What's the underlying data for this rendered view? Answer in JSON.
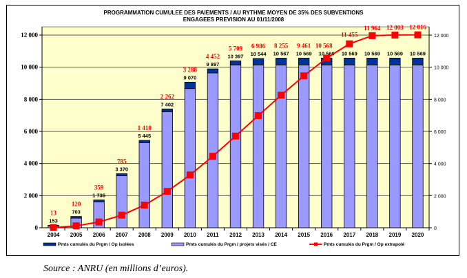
{
  "chart_data": {
    "type": "bar",
    "stacked": true,
    "title": "PROGRAMMATION CUMULEE DES PAIEMENTS / AU RYTHME MOYEN DE 35% DES SUBVENTIONS",
    "subtitle": "ENGAGEES PREVISION AU 01/11/2008",
    "xlabel": "",
    "ylabel": "",
    "ylim": [
      0,
      12000
    ],
    "yticks_left": [
      "0",
      "2 000",
      "4 000",
      "6 000",
      "8 000",
      "10 000",
      "12 000"
    ],
    "yticks_right": [
      "0",
      "2 000",
      "4 000",
      "6 000",
      "8 000",
      "10 000",
      "12 000"
    ],
    "ytick_values": [
      0,
      2000,
      4000,
      6000,
      8000,
      10000,
      12000
    ],
    "grid": true,
    "categories": [
      "2004",
      "2005",
      "2006",
      "2007",
      "2008",
      "2009",
      "2010",
      "2011",
      "2012",
      "2013",
      "2014",
      "2015",
      "2016",
      "2017",
      "2018",
      "2019",
      "2020"
    ],
    "series": [
      {
        "name": "Pmts cumulés du Prgm / projets visés / CE",
        "kind": "bar",
        "color": "#9999ff",
        "values": [
          110,
          600,
          1610,
          3240,
          5300,
          7220,
          8670,
          9640,
          10140,
          10140,
          10140,
          10140,
          10140,
          10140,
          10140,
          10140,
          10140
        ]
      },
      {
        "name": "Pmts cumulés du Prgm / Op isolées",
        "kind": "bar",
        "color": "#003399",
        "values": [
          43,
          103,
          125,
          130,
          145,
          182,
          400,
          257,
          257,
          404,
          427,
          429,
          429,
          429,
          429,
          429,
          429
        ]
      },
      {
        "name": "Pmts cumulés du Prgm / Op extrapolé",
        "kind": "line",
        "color": "#ff0000",
        "values": [
          13,
          120,
          359,
          785,
          1410,
          2262,
          3288,
          4452,
          5709,
          6986,
          8255,
          9461,
          10568,
          11455,
          11964,
          12003,
          12016
        ]
      }
    ],
    "bar_totals": [
      153,
      703,
      1735,
      3370,
      5445,
      7402,
      9070,
      9897,
      10397,
      10544,
      10567,
      10569,
      10569,
      10569,
      10569,
      10569,
      10569
    ],
    "bar_total_labels": [
      "153",
      "703",
      "1 735",
      "3 370",
      "5 445",
      "7 402",
      "9 070",
      "9 897",
      "10 397",
      "10 544",
      "10 567",
      "10 569",
      "10 569",
      "10 569",
      "10 569",
      "10 569",
      "10 569"
    ],
    "line_labels": [
      "13",
      "120",
      "359",
      "785",
      "1 410",
      "2 262",
      "3 288",
      "4 452",
      "5 709",
      "6 986",
      "8 255",
      "9 461",
      "10 568",
      "11 455",
      "11 964",
      "12 003",
      "12 016"
    ],
    "legend": {
      "placement": "bottom",
      "items": [
        {
          "label": "Pmts cumulés du Prgm / Op isolées",
          "color": "#003399",
          "kind": "bar"
        },
        {
          "label": "Pmts cumulés du Prgm / projets visés / CE",
          "color": "#9999ff",
          "kind": "bar"
        },
        {
          "label": "Pmts cumulés du Prgm / Op extrapolé",
          "color": "#ff0000",
          "kind": "line"
        }
      ]
    },
    "plot_background": "#ffffcc"
  },
  "source": "Source : ANRU (en millions d’euros)."
}
